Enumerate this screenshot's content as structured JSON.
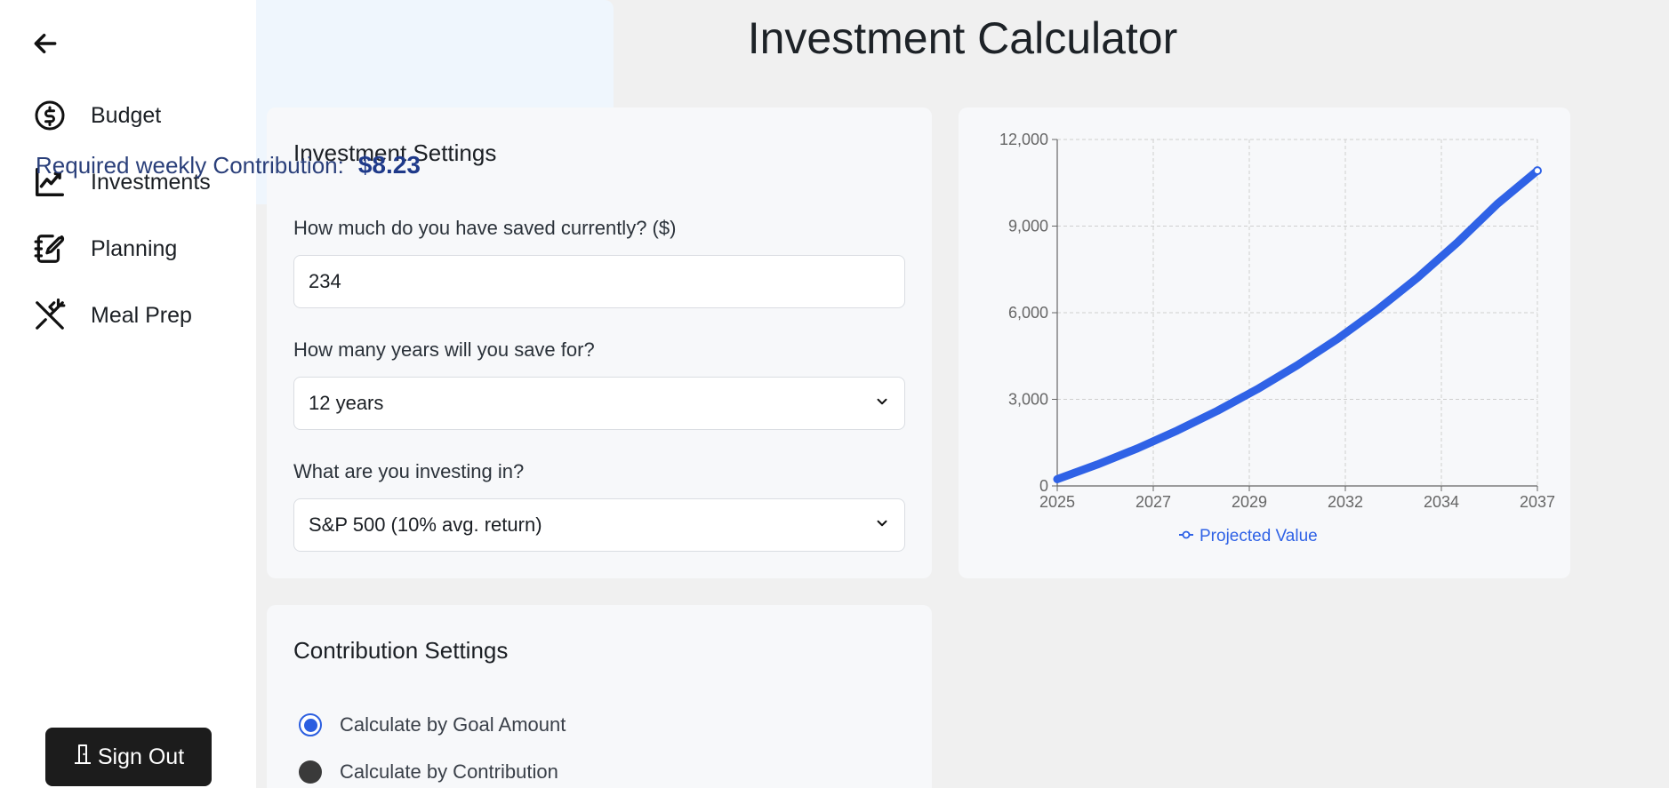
{
  "sidebar": {
    "back_icon": "arrow-left-icon",
    "items": [
      {
        "label": "Budget",
        "icon": "dollar-circle-icon"
      },
      {
        "label": "Investments",
        "icon": "line-chart-icon"
      },
      {
        "label": "Planning",
        "icon": "notebook-pen-icon"
      },
      {
        "label": "Meal Prep",
        "icon": "utensils-icon"
      }
    ],
    "sign_out_label": "Sign Out"
  },
  "page": {
    "title": "Investment Calculator"
  },
  "investment_settings": {
    "title": "Investment Settings",
    "saved_label": "How much do you have saved currently? ($)",
    "saved_value": "234",
    "years_label": "How many years will you save for?",
    "years_value": "12 years",
    "asset_label": "What are you investing in?",
    "asset_value": "S&P 500 (10% avg. return)"
  },
  "contribution_settings": {
    "title": "Contribution Settings",
    "options": [
      {
        "label": "Calculate by Goal Amount",
        "checked": true
      },
      {
        "label": "Calculate by Contribution",
        "checked": false
      }
    ]
  },
  "result": {
    "label": "Required weekly Contribution:",
    "value": "$8.23"
  },
  "colors": {
    "accent": "#2b5ee0",
    "line": "#2f62e6",
    "grid": "#cfcfcf"
  },
  "chart_data": {
    "type": "line",
    "x_tick_labels": [
      "2025",
      "2027",
      "2029",
      "2032",
      "2034",
      "2037"
    ],
    "y_ticks": [
      0,
      3000,
      6000,
      9000,
      12000
    ],
    "y_tick_labels": [
      "0",
      "3,000",
      "6,000",
      "9,000",
      "12,000"
    ],
    "ylim": [
      0,
      12000
    ],
    "xlim": [
      2025,
      2037
    ],
    "grid": true,
    "legend_position": "bottom",
    "series": [
      {
        "name": "Projected Value",
        "x": [
          2025,
          2026,
          2027,
          2028,
          2029,
          2030,
          2031,
          2032,
          2033,
          2034,
          2035,
          2036,
          2037
        ],
        "values": [
          234,
          740,
          1300,
          1920,
          2600,
          3350,
          4180,
          5090,
          6100,
          7210,
          8430,
          9770,
          10920
        ]
      }
    ]
  }
}
